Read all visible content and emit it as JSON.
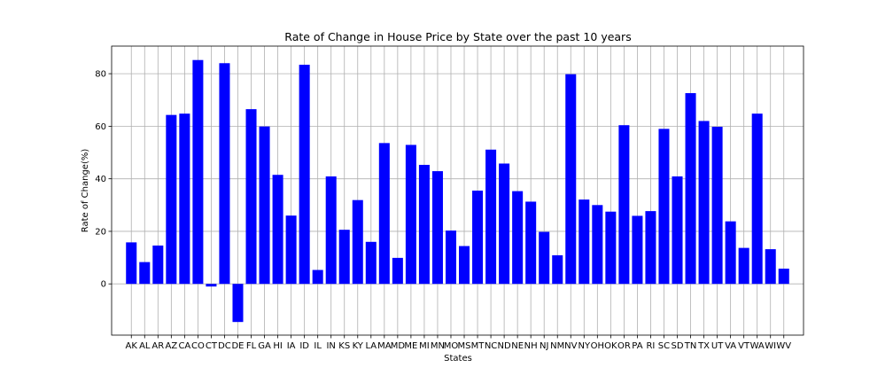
{
  "chart_data": {
    "type": "bar",
    "title": "Rate of Change in House Price by State over the past 10 years",
    "xlabel": "States",
    "ylabel": "Rate of Change(%)",
    "ylim": [
      -19.5,
      90.5
    ],
    "yticks": [
      0,
      20,
      40,
      60,
      80
    ],
    "grid": true,
    "bar_color": "#0000ff",
    "categories": [
      "AK",
      "AL",
      "AR",
      "AZ",
      "CA",
      "CO",
      "CT",
      "DC",
      "DE",
      "FL",
      "GA",
      "HI",
      "IA",
      "ID",
      "IL",
      "IN",
      "KS",
      "KY",
      "LA",
      "MA",
      "MD",
      "ME",
      "MI",
      "MN",
      "MO",
      "MS",
      "MT",
      "NC",
      "ND",
      "NE",
      "NH",
      "NJ",
      "NM",
      "NV",
      "NY",
      "OH",
      "OK",
      "OR",
      "PA",
      "RI",
      "SC",
      "SD",
      "TN",
      "TX",
      "UT",
      "VA",
      "VT",
      "WA",
      "WI",
      "WV"
    ],
    "values": [
      15.8,
      8.3,
      14.6,
      64.3,
      64.8,
      85.2,
      -1.0,
      84.0,
      -14.5,
      66.5,
      59.9,
      41.5,
      26.0,
      83.4,
      5.3,
      40.9,
      20.6,
      31.9,
      16.0,
      53.6,
      9.9,
      52.9,
      45.3,
      42.9,
      20.3,
      14.4,
      35.5,
      51.1,
      45.8,
      35.3,
      31.3,
      19.8,
      10.9,
      79.8,
      32.1,
      30.0,
      27.5,
      60.4,
      25.9,
      27.7,
      59.0,
      40.9,
      72.6,
      62.0,
      59.8,
      23.8,
      13.7,
      64.8,
      13.2,
      5.8
    ]
  }
}
